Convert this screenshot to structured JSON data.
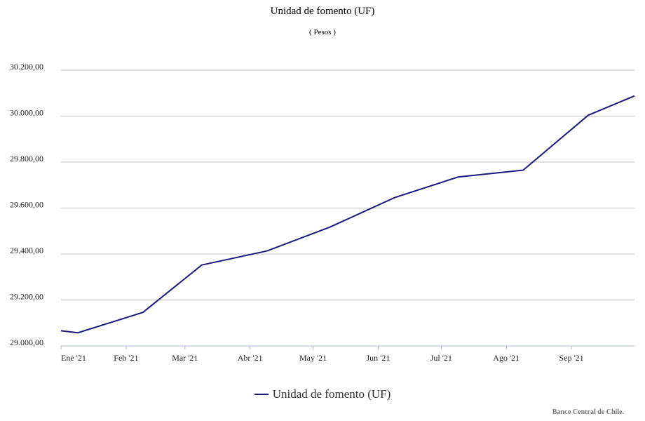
{
  "chart_data": {
    "type": "line",
    "title": "Unidad de fomento (UF)",
    "subtitle": "( Pesos )",
    "xlabel": "",
    "ylabel": "",
    "ylim": [
      29000,
      30200
    ],
    "y_ticks": [
      29000,
      29200,
      29400,
      29600,
      29800,
      30000,
      30200
    ],
    "y_tick_labels": [
      "29.000,00",
      "29.200,00",
      "29.400,00",
      "29.600,00",
      "29.800,00",
      "30.000,00",
      "30.200,00"
    ],
    "x_range": [
      "2021-01-01",
      "2021-10-01"
    ],
    "x_ticks": [
      "2021-01-01",
      "2021-02-01",
      "2021-03-01",
      "2021-04-01",
      "2021-05-01",
      "2021-06-01",
      "2021-07-01",
      "2021-08-01",
      "2021-09-01"
    ],
    "x_tick_labels": [
      "Ene '21",
      "Feb '21",
      "Mar '21",
      "Abr '21",
      "May '21",
      "Jun '21",
      "Jul '21",
      "Ago '21",
      "Sep '21"
    ],
    "grid": true,
    "legend_position": "bottom",
    "series": [
      {
        "name": "Unidad de fomento (UF)",
        "color": "#1a1a7e",
        "points": [
          {
            "x": "2021-01-01",
            "y": 29066
          },
          {
            "x": "2021-01-09",
            "y": 29057
          },
          {
            "x": "2021-02-09",
            "y": 29146
          },
          {
            "x": "2021-03-09",
            "y": 29352
          },
          {
            "x": "2021-04-09",
            "y": 29413
          },
          {
            "x": "2021-05-09",
            "y": 29517
          },
          {
            "x": "2021-06-09",
            "y": 29646
          },
          {
            "x": "2021-07-09",
            "y": 29735
          },
          {
            "x": "2021-08-09",
            "y": 29765
          },
          {
            "x": "2021-09-09",
            "y": 30004
          },
          {
            "x": "2021-10-01",
            "y": 30088
          }
        ]
      }
    ]
  },
  "credit": "Banco Central de Chile."
}
